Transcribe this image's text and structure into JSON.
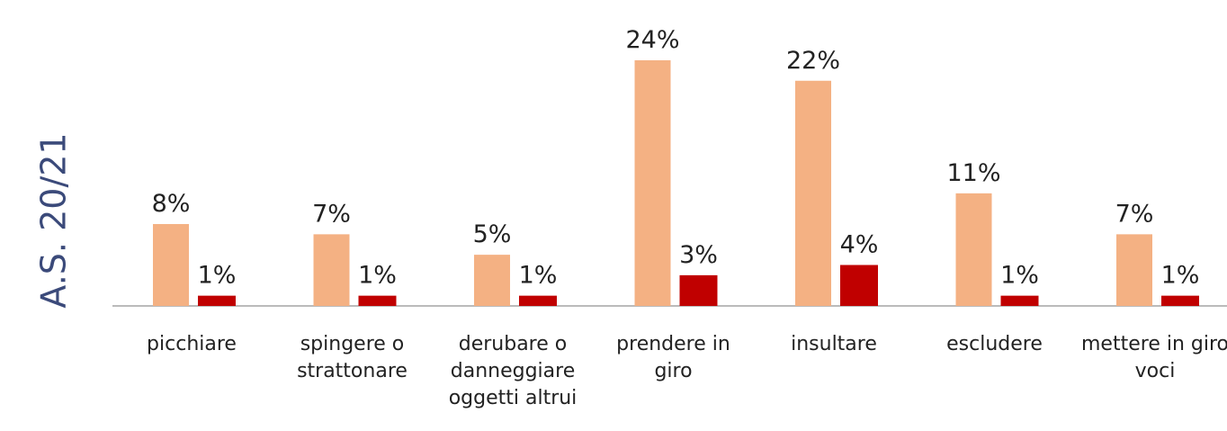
{
  "chart_data": {
    "type": "bar",
    "title": "A.S. 20/21",
    "categories": [
      "picchiare",
      "spingere o strattonare",
      "derubare o danneggiare oggetti altrui",
      "prendere in giro",
      "insultare",
      "escludere",
      "mettere in giro voci"
    ],
    "series": [
      {
        "color": "#f4b183",
        "values": [
          8,
          7,
          5,
          24,
          22,
          11,
          7
        ],
        "value_labels": [
          "8%",
          "7%",
          "5%",
          "24%",
          "22%",
          "11%",
          "7%"
        ]
      },
      {
        "color": "#c00000",
        "values": [
          1,
          1,
          1,
          3,
          4,
          1,
          1
        ],
        "value_labels": [
          "1%",
          "1%",
          "1%",
          "3%",
          "4%",
          "1%",
          "1%"
        ]
      }
    ]
  }
}
